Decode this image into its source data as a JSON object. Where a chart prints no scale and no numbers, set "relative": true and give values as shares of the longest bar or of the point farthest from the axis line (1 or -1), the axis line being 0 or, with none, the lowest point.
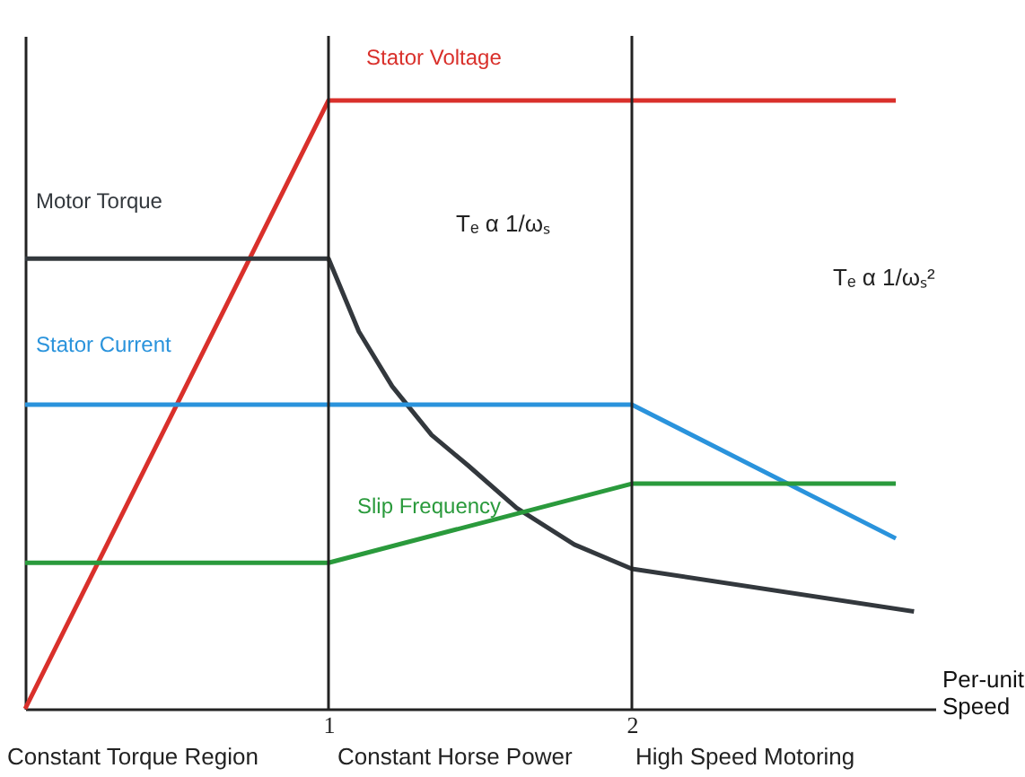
{
  "chart_data": {
    "type": "line",
    "relative": true,
    "xlabel": "Per-unit Speed",
    "xlim": [
      0,
      3.0
    ],
    "xticks": [
      1,
      2
    ],
    "grid": false,
    "marker": "none",
    "line_style": "solid",
    "annotations": [
      "Tₑ α 1/ωₛ",
      "Tₑ α 1/ωₛ²",
      "Constant Torque Region",
      "Constant Horse Power",
      "High Speed Motoring"
    ],
    "ref_lines": [
      {
        "axis": "x",
        "value": 1,
        "color": "#222222"
      },
      {
        "axis": "x",
        "value": 2,
        "color": "#222222"
      }
    ],
    "series": [
      {
        "name": "Stator Voltage",
        "color": "#d9302b",
        "x": [
          0,
          1,
          2.87
        ],
        "values": [
          0,
          1,
          1
        ]
      },
      {
        "name": "Motor Torque",
        "color": "#33383d",
        "x": [
          0,
          1,
          1.1,
          1.21,
          1.34,
          1.46,
          1.62,
          1.81,
          2,
          2.93
        ],
        "values": [
          0.74,
          0.74,
          0.62,
          0.53,
          0.45,
          0.4,
          0.33,
          0.27,
          0.23,
          0.16
        ]
      },
      {
        "name": "Stator Current",
        "color": "#2a93dc",
        "x": [
          0,
          2,
          2.87
        ],
        "values": [
          0.5,
          0.5,
          0.28
        ]
      },
      {
        "name": "Slip Frequency",
        "color": "#2a9a3c",
        "x": [
          0,
          1,
          2,
          2.87
        ],
        "values": [
          0.24,
          0.24,
          0.37,
          0.37
        ]
      }
    ]
  }
}
